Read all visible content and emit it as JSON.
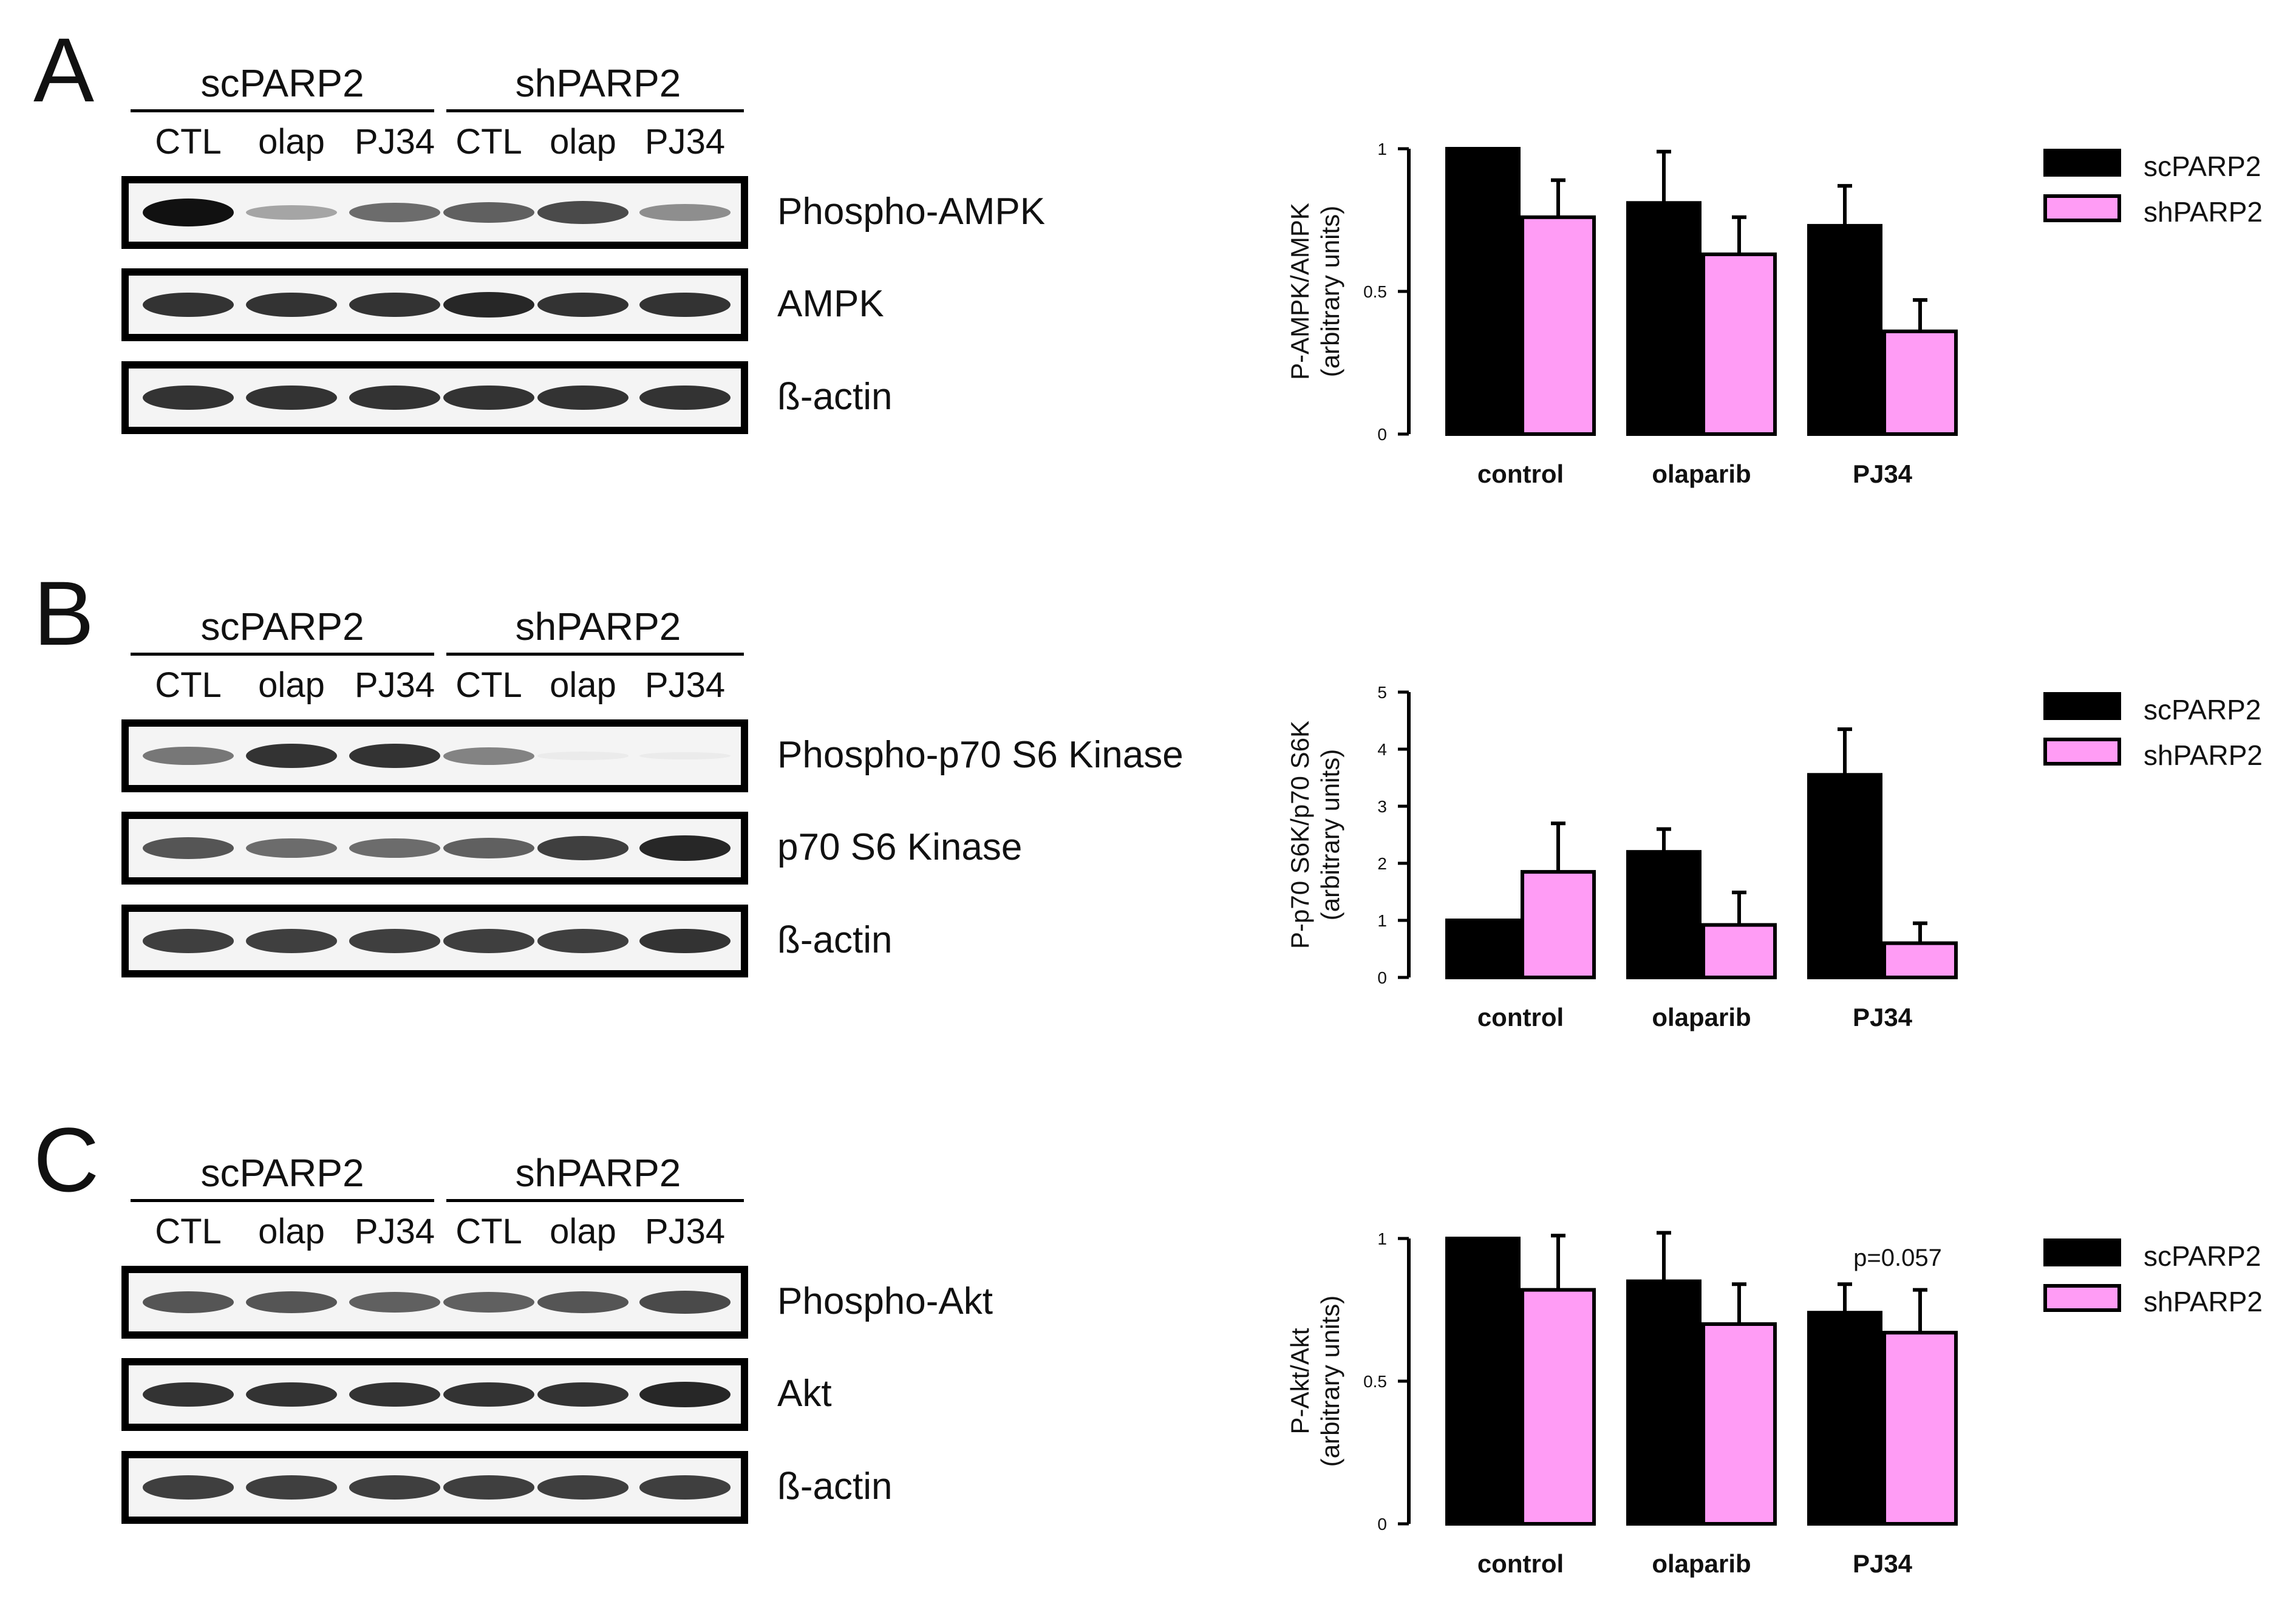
{
  "colors": {
    "sc": "#000000",
    "sh": "#ff9cf5",
    "blot_bg": "#f4f4f4"
  },
  "groups": {
    "sc": "scPARP2",
    "sh": "shPARP2"
  },
  "lanes": [
    "CTL",
    "olap",
    "PJ34",
    "CTL",
    "olap",
    "PJ34"
  ],
  "panels": [
    {
      "letter": "A",
      "blots": [
        {
          "label": "Phospho-AMPK",
          "intensity": [
            1.0,
            0.35,
            0.6,
            0.65,
            0.75,
            0.45
          ]
        },
        {
          "label": "AMPK",
          "intensity": [
            0.85,
            0.85,
            0.85,
            0.9,
            0.85,
            0.85
          ]
        },
        {
          "label": "ß-actin",
          "intensity": [
            0.85,
            0.85,
            0.85,
            0.85,
            0.85,
            0.85
          ]
        }
      ],
      "chart": {
        "ylabel": "P-AMPK/AMPK",
        "ylabel2": "(arbitrary units)",
        "annotation": ""
      }
    },
    {
      "letter": "B",
      "blots": [
        {
          "label": "Phospho-p70 S6 Kinase",
          "intensity": [
            0.55,
            0.85,
            0.85,
            0.5,
            0.03,
            0.02
          ]
        },
        {
          "label": "p70 S6 Kinase",
          "intensity": [
            0.7,
            0.6,
            0.6,
            0.65,
            0.8,
            0.9
          ]
        },
        {
          "label": "ß-actin",
          "intensity": [
            0.8,
            0.8,
            0.8,
            0.8,
            0.8,
            0.85
          ]
        }
      ],
      "chart": {
        "ylabel": "P-p70 S6K/p70 S6K",
        "ylabel2": "(arbitrary units)",
        "annotation": ""
      }
    },
    {
      "letter": "C",
      "blots": [
        {
          "label": "Phospho-Akt",
          "intensity": [
            0.7,
            0.7,
            0.65,
            0.65,
            0.7,
            0.75
          ]
        },
        {
          "label": "Akt",
          "intensity": [
            0.85,
            0.85,
            0.85,
            0.85,
            0.85,
            0.9
          ]
        },
        {
          "label": "ß-actin",
          "intensity": [
            0.8,
            0.8,
            0.8,
            0.8,
            0.8,
            0.8
          ]
        }
      ],
      "chart": {
        "ylabel": "P-Akt/Akt",
        "ylabel2": "(arbitrary units)",
        "annotation": "p=0.057"
      }
    }
  ],
  "chart_data": [
    {
      "type": "bar",
      "title": "",
      "categories": [
        "control",
        "olaparib",
        "PJ34"
      ],
      "series": [
        {
          "name": "scPARP2",
          "values": [
            1.0,
            0.81,
            0.73
          ],
          "errors": [
            0.0,
            0.18,
            0.14
          ]
        },
        {
          "name": "shPARP2",
          "values": [
            0.76,
            0.63,
            0.36
          ],
          "errors": [
            0.13,
            0.13,
            0.11
          ]
        }
      ],
      "xlabel": "",
      "ylabel": "P-AMPK/AMPK (arbitrary units)",
      "ylim": [
        0,
        1
      ],
      "yticks": [
        0,
        0.5,
        1
      ],
      "ytick_labels": [
        "0",
        "0.5",
        "1"
      ],
      "legend": "top-right"
    },
    {
      "type": "bar",
      "title": "",
      "categories": [
        "control",
        "olaparib",
        "PJ34"
      ],
      "series": [
        {
          "name": "scPARP2",
          "values": [
            1.0,
            2.2,
            3.55
          ],
          "errors": [
            0.0,
            0.4,
            0.8
          ]
        },
        {
          "name": "shPARP2",
          "values": [
            1.85,
            0.92,
            0.6
          ],
          "errors": [
            0.85,
            0.57,
            0.35
          ]
        }
      ],
      "xlabel": "",
      "ylabel": "P-p70 S6K/p70 S6K (arbitrary units)",
      "ylim": [
        0,
        5
      ],
      "yticks": [
        0,
        1,
        2,
        3,
        4,
        5
      ],
      "ytick_labels": [
        "0",
        "1",
        "2",
        "3",
        "4",
        "5"
      ],
      "legend": "top-right"
    },
    {
      "type": "bar",
      "title": "",
      "categories": [
        "control",
        "olaparib",
        "PJ34"
      ],
      "series": [
        {
          "name": "scPARP2",
          "values": [
            1.0,
            0.85,
            0.74
          ],
          "errors": [
            0.0,
            0.17,
            0.1
          ]
        },
        {
          "name": "shPARP2",
          "values": [
            0.82,
            0.7,
            0.67
          ],
          "errors": [
            0.19,
            0.14,
            0.15
          ]
        }
      ],
      "xlabel": "",
      "ylabel": "P-Akt/Akt (arbitrary units)",
      "ylim": [
        0,
        1
      ],
      "yticks": [
        0,
        0.5,
        1
      ],
      "ytick_labels": [
        "0",
        "0.5",
        "1"
      ],
      "legend": "top-right"
    }
  ]
}
